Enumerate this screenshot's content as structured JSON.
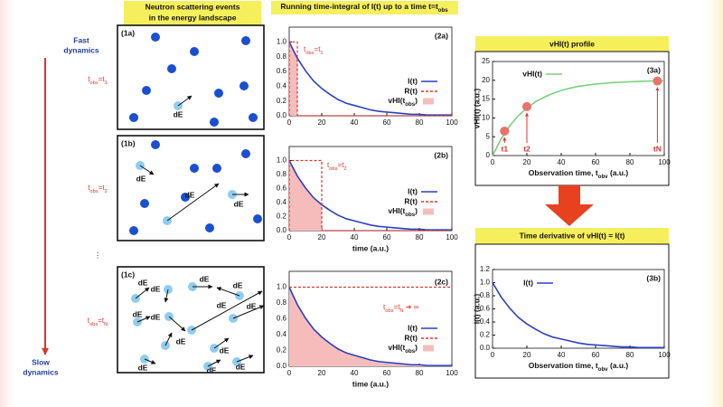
{
  "side": {
    "top": [
      "Fast",
      "dynamics"
    ],
    "bottom": [
      "Slow",
      "dynamics"
    ],
    "rows": [
      [
        "t",
        "obs",
        "=t",
        "1"
      ],
      [
        "t",
        "obs",
        "=t",
        "2"
      ],
      [
        "t",
        "obs",
        "=t",
        "N"
      ]
    ],
    "ellipsis": "⋮"
  },
  "headers": {
    "events": [
      "Neutron scattering events",
      "in the energy landscape"
    ],
    "integral": [
      "Running time-integral of I(t) up to a time t=t",
      "obs"
    ],
    "profile": "vHI(t) profile",
    "derivative": "Time derivative of vHI(t) = I(t)"
  },
  "panels": [
    {
      "label": "(1a)",
      "arrow_labels": [
        "dE"
      ]
    },
    {
      "label": "(1b)",
      "arrow_labels": [
        "dE",
        "dE",
        "dE"
      ]
    },
    {
      "label": "(1c)",
      "arrow_labels": [
        "dE",
        "dE",
        "dE",
        "dE",
        "dE",
        "dE",
        "dE",
        "dE",
        "dE",
        "dE",
        "dE",
        "dE",
        "dE"
      ]
    }
  ],
  "chart_data": [
    {
      "type": "line",
      "panel_label": "(2a)",
      "annotation": [
        "t",
        "obs",
        "=t",
        "1"
      ],
      "x": [
        0,
        5,
        10,
        15,
        20,
        25,
        30,
        35,
        40,
        45,
        50,
        55,
        60,
        65,
        70,
        75,
        80,
        85,
        90,
        95,
        100
      ],
      "xlim": [
        0,
        100
      ],
      "xticks": [
        0,
        20,
        40,
        60,
        80,
        100
      ],
      "ylim": [
        0,
        1.2
      ],
      "yticks": [
        {
          "value": 0,
          "label": "0.0"
        },
        {
          "value": 0.2,
          "label": "0.2"
        },
        {
          "value": 0.4,
          "label": "0.4"
        },
        {
          "value": 0.6,
          "label": "0.6"
        },
        {
          "value": 0.8,
          "label": "0.8"
        },
        {
          "value": 1,
          "label": "1.0"
        }
      ],
      "series": [
        {
          "name": "I(t)",
          "color": "#2c3fc0",
          "values": [
            1.0,
            0.78,
            0.61,
            0.47,
            0.37,
            0.29,
            0.22,
            0.17,
            0.14,
            0.11,
            0.08,
            0.06,
            0.05,
            0.04,
            0.03,
            0.02,
            0.02,
            0.01,
            0.01,
            0.01,
            0.01
          ]
        },
        {
          "name": "R(t)",
          "color": "#e0342b",
          "dashed": true,
          "x": [
            0,
            0,
            5,
            5,
            100
          ],
          "values": [
            0,
            1,
            1,
            0,
            0
          ]
        },
        {
          "name": [
            "vHI(t",
            "obs",
            ")"
          ],
          "color": "#f6bcbc",
          "kind": "area",
          "x": [
            0,
            5
          ],
          "values": [
            1.0,
            0.78
          ]
        }
      ]
    },
    {
      "type": "line",
      "panel_label": "(2b)",
      "annotation": [
        "t",
        "obs",
        "=t",
        "2"
      ],
      "xlabel": "time (a.u.)",
      "x": [
        0,
        5,
        10,
        15,
        20,
        25,
        30,
        35,
        40,
        45,
        50,
        55,
        60,
        65,
        70,
        75,
        80,
        85,
        90,
        95,
        100
      ],
      "xlim": [
        0,
        100
      ],
      "xticks": [
        0,
        20,
        40,
        60,
        80,
        100
      ],
      "ylim": [
        0,
        1.2
      ],
      "yticks": [
        {
          "value": 0,
          "label": "0.0"
        },
        {
          "value": 0.2,
          "label": "0.2"
        },
        {
          "value": 0.4,
          "label": "0.4"
        },
        {
          "value": 0.6,
          "label": "0.6"
        },
        {
          "value": 0.8,
          "label": "0.8"
        },
        {
          "value": 1,
          "label": "1.0"
        }
      ],
      "series": [
        {
          "name": "I(t)",
          "color": "#2c3fc0",
          "values": [
            1.0,
            0.78,
            0.61,
            0.47,
            0.37,
            0.29,
            0.22,
            0.17,
            0.14,
            0.11,
            0.08,
            0.06,
            0.05,
            0.04,
            0.03,
            0.02,
            0.02,
            0.01,
            0.01,
            0.01,
            0.01
          ]
        },
        {
          "name": "R(t)",
          "color": "#e0342b",
          "dashed": true,
          "x": [
            0,
            0,
            20,
            20,
            100
          ],
          "values": [
            0,
            1,
            1,
            0,
            0
          ]
        },
        {
          "name": [
            "vHI(t",
            "obs",
            ")"
          ],
          "color": "#f6bcbc",
          "kind": "area",
          "x": [
            0,
            5,
            10,
            15,
            20
          ],
          "values": [
            1.0,
            0.78,
            0.61,
            0.47,
            0.37
          ]
        }
      ]
    },
    {
      "type": "line",
      "panel_label": "(2c)",
      "annotation": [
        "t",
        "obs",
        "=t",
        "N",
        " ➔ ∞"
      ],
      "xlabel": "time (a.u.)",
      "x": [
        0,
        5,
        10,
        15,
        20,
        25,
        30,
        35,
        40,
        45,
        50,
        55,
        60,
        65,
        70,
        75,
        80,
        85,
        90,
        95,
        100
      ],
      "xlim": [
        0,
        100
      ],
      "xticks": [
        0,
        20,
        40,
        60,
        80,
        100
      ],
      "ylim": [
        0,
        1.2
      ],
      "yticks": [
        {
          "value": 0,
          "label": "0.0"
        },
        {
          "value": 0.2,
          "label": "0.2"
        },
        {
          "value": 0.4,
          "label": "0.4"
        },
        {
          "value": 0.6,
          "label": "0.6"
        },
        {
          "value": 0.8,
          "label": "0.8"
        },
        {
          "value": 1,
          "label": "1.0"
        }
      ],
      "series": [
        {
          "name": "I(t)",
          "color": "#2c3fc0",
          "values": [
            1.0,
            0.78,
            0.61,
            0.47,
            0.37,
            0.29,
            0.22,
            0.17,
            0.14,
            0.11,
            0.08,
            0.06,
            0.05,
            0.04,
            0.03,
            0.02,
            0.02,
            0.01,
            0.01,
            0.01,
            0.01
          ]
        },
        {
          "name": "R(t)",
          "color": "#e0342b",
          "dashed": true,
          "x": [
            0,
            100
          ],
          "values": [
            1,
            1
          ]
        },
        {
          "name": [
            "vHI(t",
            "obs",
            ")"
          ],
          "color": "#f6bcbc",
          "kind": "area",
          "values": [
            1.0,
            0.78,
            0.61,
            0.47,
            0.37,
            0.29,
            0.22,
            0.17,
            0.14,
            0.11,
            0.08,
            0.06,
            0.05,
            0.04,
            0.03,
            0.02,
            0.02,
            0.01,
            0.01,
            0.01,
            0.01
          ]
        }
      ]
    },
    {
      "type": "line",
      "panel_label": "(3a)",
      "xlabel": [
        "Observation time, t",
        "obv",
        " (a.u.)"
      ],
      "ylabel": "vHI(t) (a.u.)",
      "x": [
        0,
        5,
        10,
        15,
        20,
        25,
        30,
        35,
        40,
        45,
        50,
        55,
        60,
        65,
        70,
        75,
        80,
        85,
        90,
        95,
        100
      ],
      "xlim": [
        0,
        100
      ],
      "xticks": [
        0,
        20,
        40,
        60,
        80,
        100
      ],
      "ylim": [
        0,
        25
      ],
      "yticks": [
        0,
        5,
        10,
        15,
        20,
        25
      ],
      "series": [
        {
          "name": "vHI(t)",
          "color": "#7ccf7c",
          "values": [
            0,
            4.4,
            7.9,
            10.6,
            12.6,
            14.3,
            15.5,
            16.5,
            17.3,
            17.9,
            18.4,
            18.7,
            19.0,
            19.2,
            19.4,
            19.5,
            19.6,
            19.7,
            19.8,
            19.8,
            19.9
          ]
        },
        {
          "kind": "points",
          "color": "#e8736b",
          "x": [
            7,
            20,
            96
          ],
          "values": [
            6.5,
            13,
            19.8
          ],
          "labels": [
            "t1",
            "t2",
            "tN"
          ]
        }
      ]
    },
    {
      "type": "line",
      "panel_label": "(3b)",
      "xlabel": [
        "Observation time, t",
        "obv",
        " (a.u.)"
      ],
      "ylabel": "I(t) (a.u.)",
      "x": [
        0,
        5,
        10,
        15,
        20,
        25,
        30,
        35,
        40,
        45,
        50,
        55,
        60,
        65,
        70,
        75,
        80,
        85,
        90,
        95,
        100
      ],
      "xlim": [
        0,
        100
      ],
      "xticks": [
        0,
        20,
        40,
        60,
        80,
        100
      ],
      "ylim": [
        0,
        1.2
      ],
      "yticks": [
        {
          "value": 0,
          "label": "0.0"
        },
        {
          "value": 0.2,
          "label": "0.2"
        },
        {
          "value": 0.4,
          "label": "0.4"
        },
        {
          "value": 0.6,
          "label": "0.6"
        },
        {
          "value": 0.8,
          "label": "0.8"
        },
        {
          "value": 1,
          "label": "1.0"
        },
        {
          "value": 1.2,
          "label": "1.2"
        }
      ],
      "series": [
        {
          "name": "I(t)",
          "color": "#2c3fc0",
          "values": [
            1.0,
            0.78,
            0.61,
            0.47,
            0.37,
            0.29,
            0.22,
            0.17,
            0.14,
            0.11,
            0.08,
            0.06,
            0.05,
            0.04,
            0.03,
            0.02,
            0.02,
            0.01,
            0.01,
            0.01,
            0.01
          ]
        }
      ]
    }
  ]
}
